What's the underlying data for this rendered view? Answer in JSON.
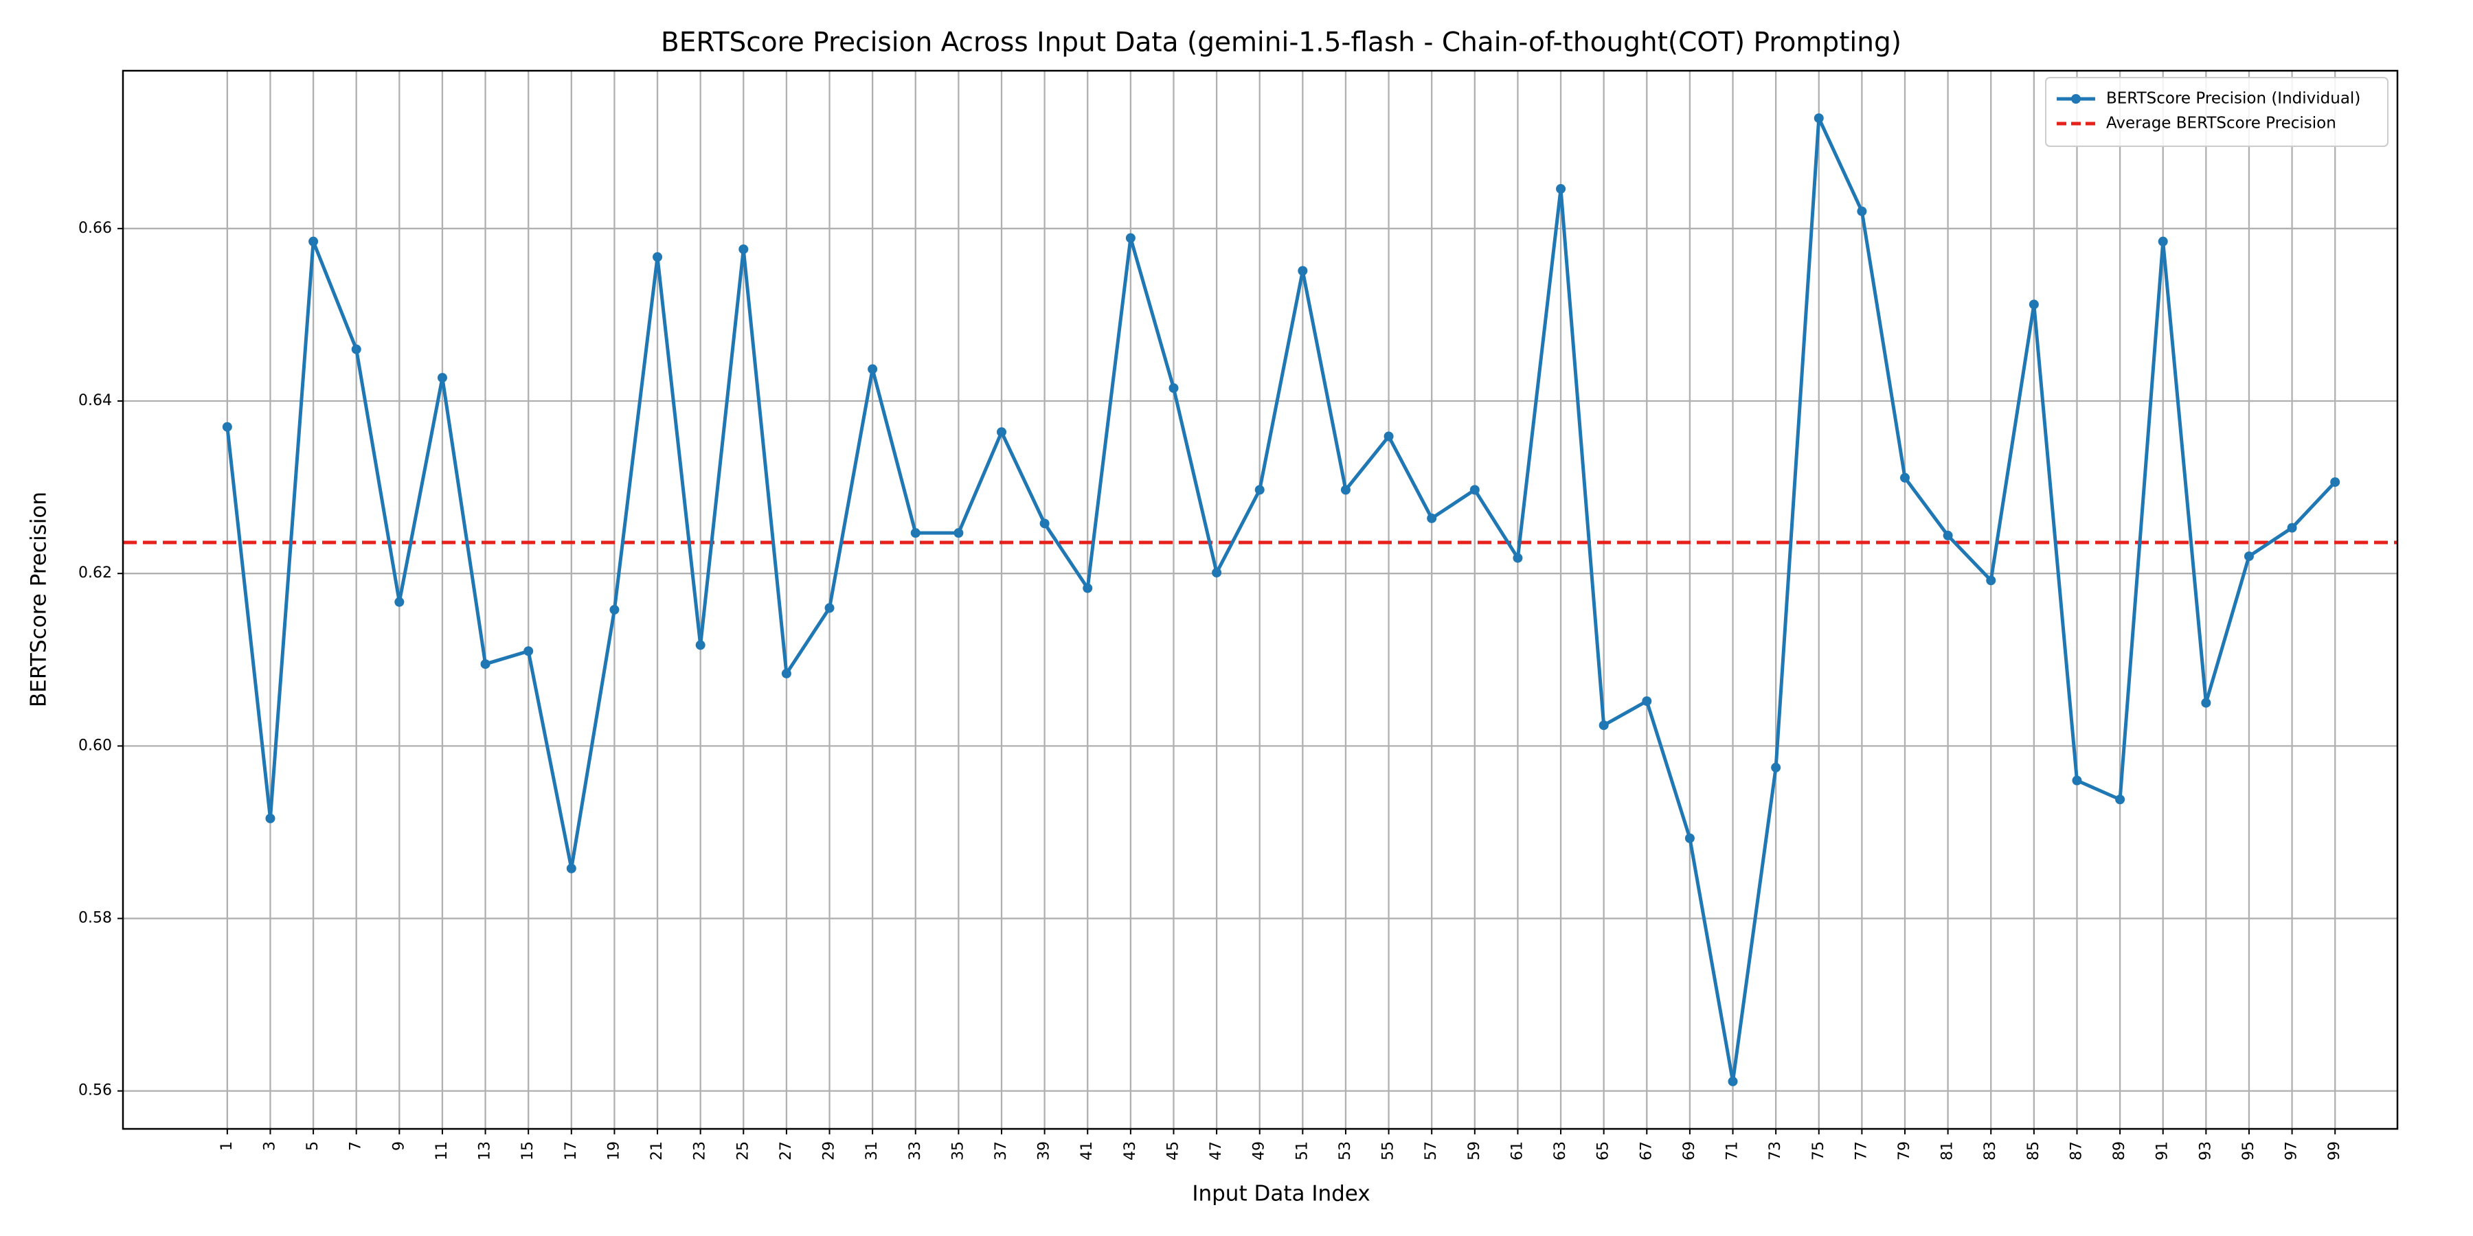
{
  "chart_data": {
    "type": "line",
    "title": "BERTScore Precision Across Input Data (gemini-1.5-flash - Chain-of-thought(COT) Prompting)",
    "xlabel": "Input Data Index",
    "ylabel": "BERTScore Precision",
    "x": [
      1,
      3,
      5,
      7,
      9,
      11,
      13,
      15,
      17,
      19,
      21,
      23,
      25,
      27,
      29,
      31,
      33,
      35,
      37,
      39,
      41,
      43,
      45,
      47,
      49,
      51,
      53,
      55,
      57,
      59,
      61,
      63,
      65,
      67,
      69,
      71,
      73,
      75,
      77,
      79,
      81,
      83,
      85,
      87,
      89,
      91,
      93,
      95,
      97,
      99
    ],
    "series": [
      {
        "name": "BERTScore Precision (Individual)",
        "color": "#1f77b4",
        "values": [
          0.637,
          0.5916,
          0.6585,
          0.646,
          0.6167,
          0.6427,
          0.6095,
          0.611,
          0.5858,
          0.6158,
          0.6567,
          0.6117,
          0.6576,
          0.6084,
          0.616,
          0.6437,
          0.6247,
          0.6247,
          0.6364,
          0.6258,
          0.6183,
          0.6589,
          0.6415,
          0.6201,
          0.6297,
          0.6551,
          0.6297,
          0.6359,
          0.6264,
          0.6297,
          0.6218,
          0.6646,
          0.6024,
          0.6052,
          0.5893,
          0.5611,
          0.5975,
          0.6728,
          0.662,
          0.6311,
          0.6244,
          0.6192,
          0.6512,
          0.596,
          0.5938,
          0.6585,
          0.605,
          0.622,
          0.6253,
          0.6306
        ]
      }
    ],
    "average": {
      "name": "Average BERTScore Precision",
      "color": "#e6201b",
      "value": 0.6236
    },
    "xlim": [
      -3.85,
      101.9
    ],
    "ylim": [
      0.5556,
      0.6783
    ],
    "xticks": [
      1,
      3,
      5,
      7,
      9,
      11,
      13,
      15,
      17,
      19,
      21,
      23,
      25,
      27,
      29,
      31,
      33,
      35,
      37,
      39,
      41,
      43,
      45,
      47,
      49,
      51,
      53,
      55,
      57,
      59,
      61,
      63,
      65,
      67,
      69,
      71,
      73,
      75,
      77,
      79,
      81,
      83,
      85,
      87,
      89,
      91,
      93,
      95,
      97,
      99
    ],
    "yticks": [
      {
        "value": 0.56,
        "label": "0.56"
      },
      {
        "value": 0.58,
        "label": "0.58"
      },
      {
        "value": 0.6,
        "label": "0.60"
      },
      {
        "value": 0.62,
        "label": "0.62"
      },
      {
        "value": 0.64,
        "label": "0.64"
      },
      {
        "value": 0.66,
        "label": "0.66"
      }
    ],
    "grid": true,
    "legend": "upper right"
  }
}
